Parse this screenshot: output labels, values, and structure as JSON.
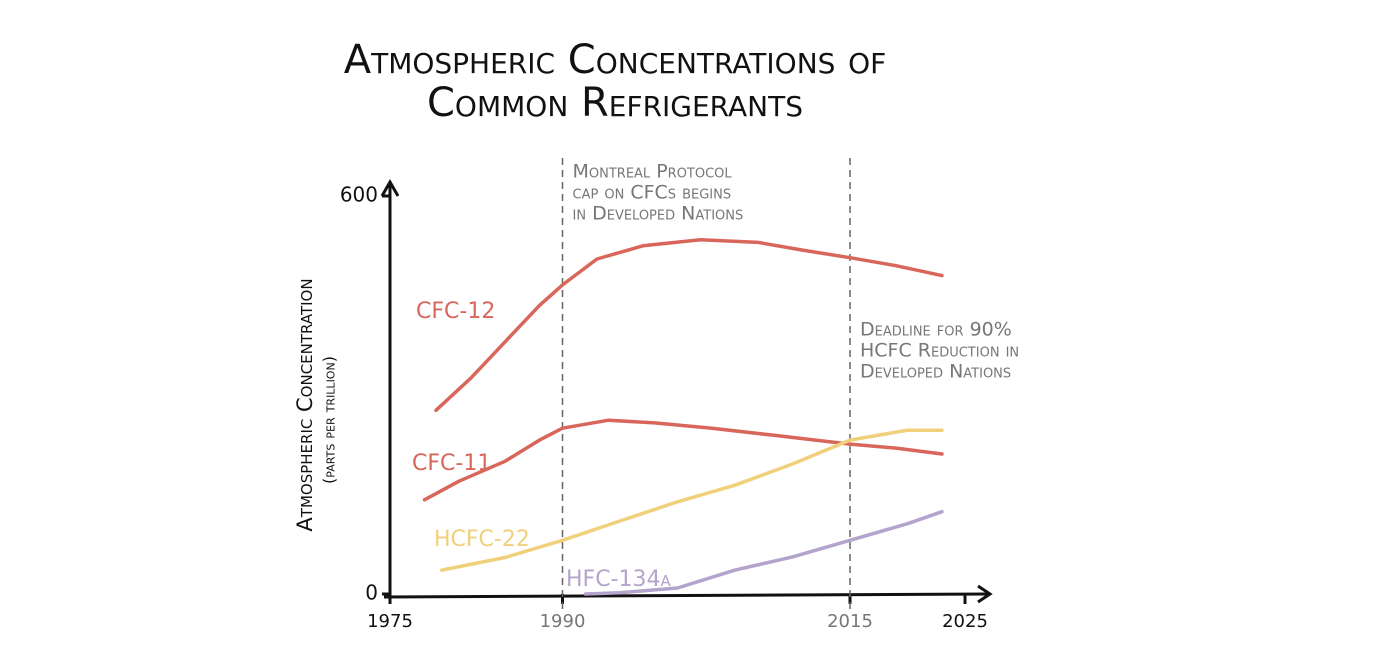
{
  "chart_data": {
    "type": "line",
    "title": [
      "Atmospheric Concentrations of",
      "Common Refrigerants"
    ],
    "y_label": [
      "Atmospheric Concentration",
      "(parts per trillion)"
    ],
    "xlim": [
      1975,
      2025
    ],
    "ylim": [
      0,
      600
    ],
    "xticks": [
      1975,
      1990,
      2015,
      2025
    ],
    "yticks": [
      0,
      600
    ],
    "grid": false,
    "series": [
      {
        "name": "CFC-12",
        "color": "#d9665a",
        "x": [
          1979,
          1982,
          1985,
          1988,
          1990,
          1993,
          1997,
          2002,
          2007,
          2011,
          2015,
          2019,
          2023
        ],
        "values": [
          277,
          325,
          380,
          435,
          466,
          505,
          525,
          534,
          530,
          518,
          507,
          495,
          480
        ]
      },
      {
        "name": "CFC-11",
        "color": "#d9665a",
        "x": [
          1978,
          1981,
          1985,
          1988,
          1990,
          1994,
          1998,
          2003,
          2008,
          2012,
          2015,
          2019,
          2023
        ],
        "values": [
          142,
          170,
          200,
          232,
          250,
          262,
          258,
          250,
          240,
          232,
          226,
          220,
          211
        ]
      },
      {
        "name": "HCFC-22",
        "color": "#f0d07a",
        "x": [
          1979.5,
          1985,
          1990,
          1995,
          2000,
          2005,
          2010,
          2015,
          2020,
          2023
        ],
        "values": [
          36,
          55,
          81,
          110,
          139,
          164,
          196,
          232,
          247,
          247
        ]
      },
      {
        "name": "HFC-134a",
        "color": "#b4a3cc",
        "x": [
          1992,
          1995,
          2000,
          2005,
          2010,
          2015,
          2020,
          2023
        ],
        "values": [
          0,
          2,
          9,
          36,
          56,
          81,
          106,
          124
        ]
      }
    ],
    "annotations": [
      {
        "x": 1990,
        "text": [
          "Montreal Protocol",
          "cap on CFCs begins",
          "in Developed Nations"
        ]
      },
      {
        "x": 2015,
        "text": [
          "Deadline for 90%",
          "HCFC Reduction in",
          "Developed Nations"
        ]
      }
    ]
  }
}
